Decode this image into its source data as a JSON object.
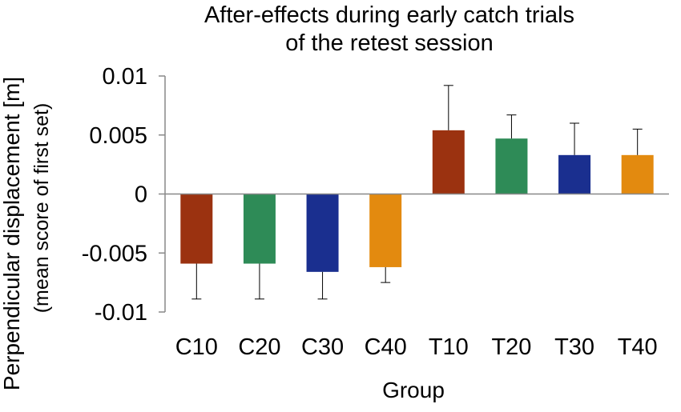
{
  "chart_data": {
    "type": "bar",
    "title": [
      "After-effects during early catch trials",
      "of the retest session"
    ],
    "xlabel": "Group",
    "ylabel": [
      "Perpendicular  displacement  [m]",
      "(mean score of first set)"
    ],
    "categories": [
      "C10",
      "C20",
      "C30",
      "C40",
      "T10",
      "T20",
      "T30",
      "T40"
    ],
    "values": [
      -0.0059,
      -0.0059,
      -0.0066,
      -0.0062,
      0.0054,
      0.0047,
      0.0033,
      0.0033
    ],
    "error_bars": [
      0.003,
      0.003,
      0.0023,
      0.0013,
      0.0038,
      0.002,
      0.0027,
      0.0022
    ],
    "colors": [
      "#9B3210",
      "#2E8B57",
      "#1A2F8F",
      "#E38A0F",
      "#9B3210",
      "#2E8B57",
      "#1A2F8F",
      "#E38A0F"
    ],
    "ylim": [
      -0.01,
      0.01
    ],
    "yticks": [
      0.01,
      0.005,
      0,
      -0.005,
      -0.01
    ],
    "ytick_labels": [
      "0.01",
      "0.005",
      "0",
      "-0.005",
      "-0.01"
    ],
    "grid": false,
    "legend": "none"
  }
}
